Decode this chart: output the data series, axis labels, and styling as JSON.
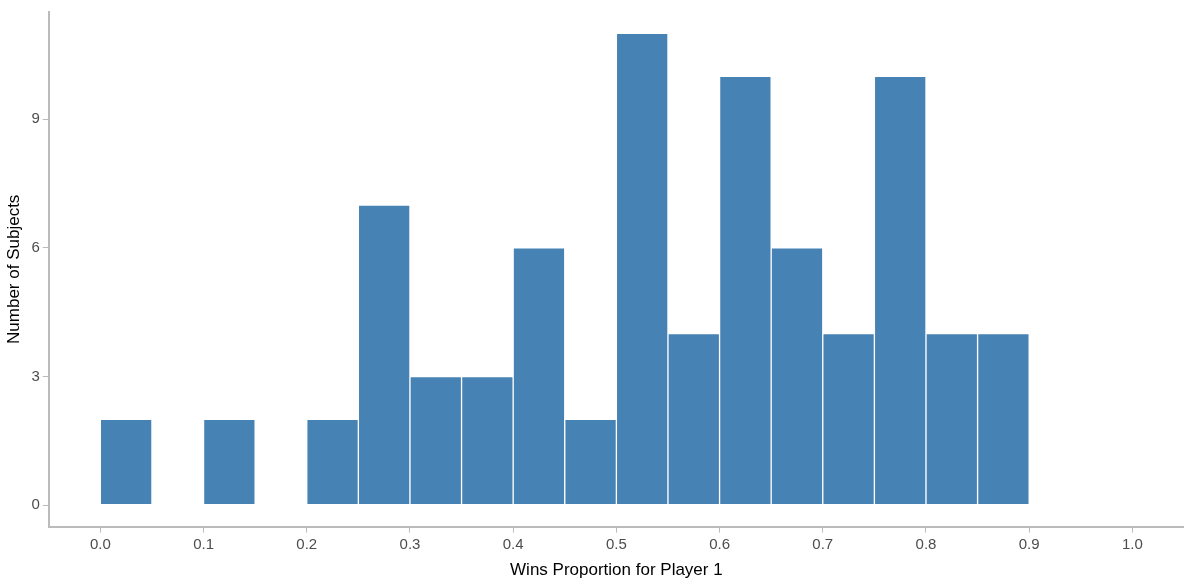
{
  "chart_data": {
    "type": "histogram",
    "xlabel": "Wins Proportion for Player 1",
    "ylabel": "Number of Subjects",
    "bins": [
      0,
      0.05,
      0.1,
      0.15,
      0.2,
      0.25,
      0.3,
      0.35,
      0.4,
      0.45,
      0.5,
      0.55,
      0.6,
      0.65,
      0.7,
      0.75,
      0.8,
      0.85,
      0.9
    ],
    "values": [
      2,
      0,
      2,
      0,
      2,
      7,
      3,
      3,
      6,
      2,
      11,
      4,
      10,
      6,
      4,
      10,
      4,
      4
    ],
    "color": "#4682b4",
    "xlim": [
      -0.05,
      1.05
    ],
    "xticks": [
      {
        "value": 0,
        "label": "0.0"
      },
      {
        "value": 0.1,
        "label": "0.1"
      },
      {
        "value": 0.2,
        "label": "0.2"
      },
      {
        "value": 0.3,
        "label": "0.3"
      },
      {
        "value": 0.4,
        "label": "0.4"
      },
      {
        "value": 0.5,
        "label": "0.5"
      },
      {
        "value": 0.6,
        "label": "0.6"
      },
      {
        "value": 0.7,
        "label": "0.7"
      },
      {
        "value": 0.8,
        "label": "0.8"
      },
      {
        "value": 0.9,
        "label": "0.9"
      },
      {
        "value": 1,
        "label": "1.0"
      }
    ],
    "ylim": [
      -0.5,
      11.5
    ],
    "yticks": [
      0,
      3,
      6,
      9
    ],
    "grid": false,
    "legend": false
  }
}
